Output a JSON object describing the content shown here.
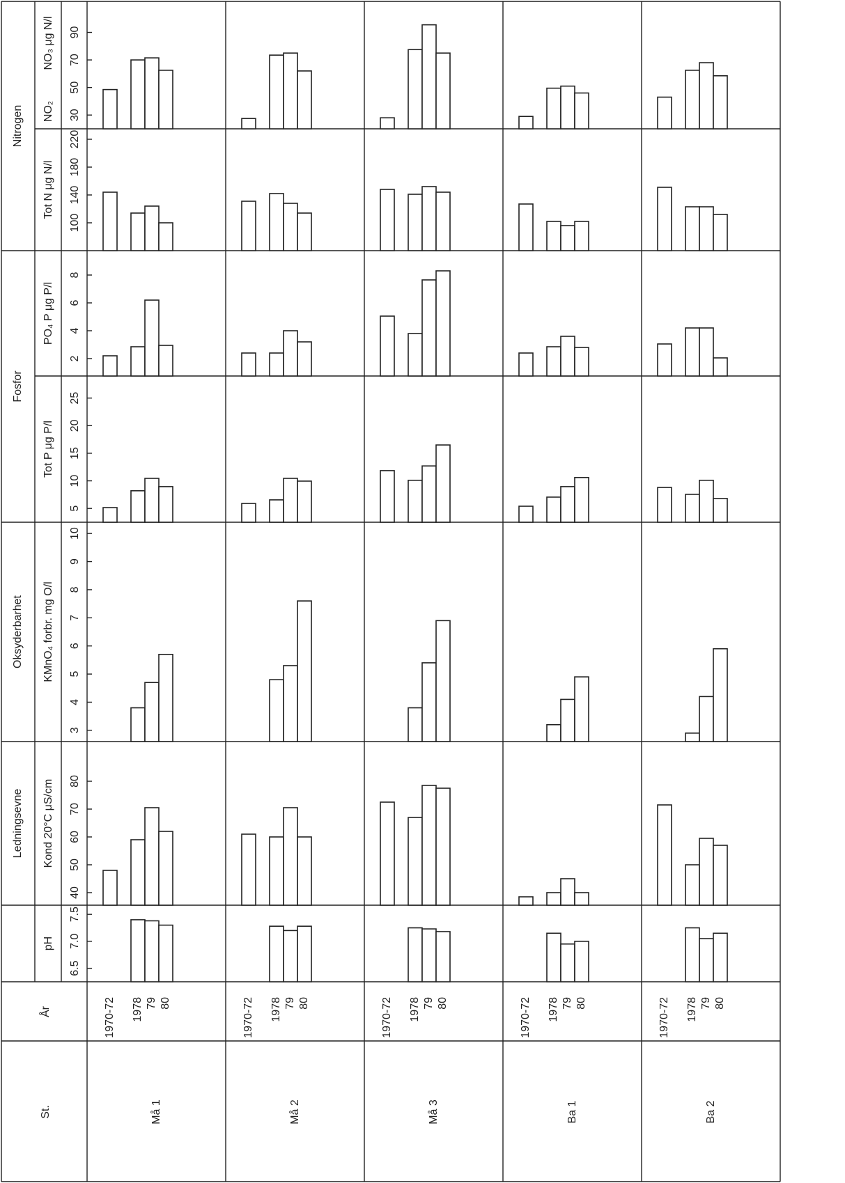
{
  "headers": {
    "station": "St.",
    "year": "År"
  },
  "stations": [
    "Må 1",
    "Må 2",
    "Må 3",
    "Ba 1",
    "Ba 2"
  ],
  "years": [
    "1970-72",
    "1978",
    "79",
    "80"
  ],
  "chart_data": [
    {
      "type": "bar",
      "group": "Nitrogen",
      "ylabel": "NO₃ μg N/l",
      "ylabel_lower": "NO₂",
      "ylim": [
        20,
        112.5
      ],
      "yticks": [
        30,
        50,
        70,
        90
      ],
      "values": [
        [
          48.5,
          70,
          71.5,
          62.5
        ],
        [
          27.5,
          73.5,
          75,
          62
        ],
        [
          28,
          77.5,
          95.5,
          75
        ],
        [
          29,
          49.5,
          51,
          46
        ],
        [
          43,
          62.5,
          68,
          58.5
        ]
      ]
    },
    {
      "type": "bar",
      "ylabel": "Tot N  μg N/l",
      "ylim": [
        60,
        235
      ],
      "yticks": [
        100,
        140,
        180,
        220
      ],
      "values": [
        [
          144,
          114,
          124,
          100
        ],
        [
          131,
          142,
          128,
          114
        ],
        [
          148,
          141,
          152,
          144
        ],
        [
          127,
          102,
          96,
          102
        ],
        [
          151,
          123,
          123,
          112
        ]
      ]
    },
    {
      "type": "bar",
      "group": "Fosfor",
      "ylabel": "PO₄ P  μg P/l",
      "ylim": [
        0.75,
        9.75
      ],
      "yticks": [
        2,
        4,
        6,
        8
      ],
      "values": [
        [
          2.2,
          2.85,
          6.2,
          2.95
        ],
        [
          2.4,
          2.4,
          4.0,
          3.2
        ],
        [
          5.05,
          3.8,
          7.65,
          8.3
        ],
        [
          2.4,
          2.85,
          3.6,
          2.8
        ],
        [
          3.05,
          4.2,
          4.2,
          2.05
        ]
      ]
    },
    {
      "type": "bar",
      "ylabel": "Tot P  μg P/l",
      "ylim": [
        2.5,
        29
      ],
      "yticks": [
        5,
        10,
        15,
        20,
        25
      ],
      "values": [
        [
          5.15,
          8.2,
          10.45,
          8.95
        ],
        [
          5.9,
          6.55,
          10.45,
          9.95
        ],
        [
          11.85,
          10.1,
          12.7,
          16.5
        ],
        [
          5.4,
          7.05,
          8.95,
          10.6
        ],
        [
          8.8,
          7.55,
          10.1,
          6.8
        ]
      ]
    },
    {
      "type": "bar",
      "group": "Oksyderbarhet",
      "ylabel": "KMnO₄ forbr. mg O/l",
      "ylim": [
        2.6,
        10.4
      ],
      "yticks": [
        3,
        4,
        5,
        6,
        7,
        8,
        9,
        10
      ],
      "values": [
        [
          null,
          3.8,
          4.7,
          5.7
        ],
        [
          null,
          4.8,
          5.3,
          7.6
        ],
        [
          null,
          3.8,
          5.4,
          6.9
        ],
        [
          null,
          3.2,
          4.1,
          4.9
        ],
        [
          null,
          2.9,
          4.2,
          5.9
        ]
      ]
    },
    {
      "type": "bar",
      "group": "Ledningsevne",
      "ylabel": "Kond 20°C  μS/cm",
      "ylim": [
        35.5,
        94.25
      ],
      "yticks": [
        40,
        50,
        60,
        70,
        80
      ],
      "values": [
        [
          48,
          59,
          70.5,
          62
        ],
        [
          61,
          60,
          70.5,
          60
        ],
        [
          72.5,
          67,
          78.5,
          77.5
        ],
        [
          38.5,
          40,
          45,
          40
        ],
        [
          71.5,
          50,
          59.5,
          57
        ]
      ]
    },
    {
      "type": "bar",
      "ylabel": "pH",
      "ylim": [
        6.25,
        7.67
      ],
      "yticks": [
        6.5,
        {
          "value": 7,
          "label": "7.0"
        },
        7.5
      ],
      "values": [
        [
          null,
          7.4,
          7.38,
          7.3
        ],
        [
          null,
          7.28,
          7.2,
          7.28
        ],
        [
          null,
          7.25,
          7.23,
          7.18
        ],
        [
          null,
          7.15,
          6.95,
          7.0
        ],
        [
          null,
          7.25,
          7.05,
          7.15
        ]
      ]
    }
  ]
}
